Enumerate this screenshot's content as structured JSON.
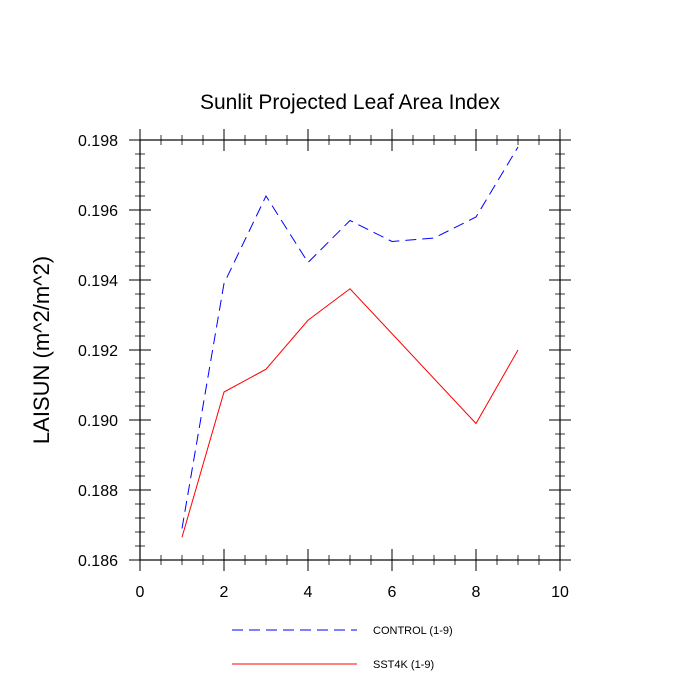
{
  "chart_data": {
    "type": "line",
    "title": "Sunlit Projected Leaf Area Index",
    "xlabel": "",
    "ylabel": "LAISUN  (m^2/m^2)",
    "xlim": [
      0,
      10
    ],
    "ylim": [
      0.186,
      0.198
    ],
    "x_ticks": [
      0,
      2,
      4,
      6,
      8,
      10
    ],
    "y_ticks": [
      0.186,
      0.188,
      0.19,
      0.192,
      0.194,
      0.196,
      0.198
    ],
    "x_tick_labels": [
      "0",
      "2",
      "4",
      "6",
      "8",
      "10"
    ],
    "y_tick_labels": [
      "0.186",
      "0.188",
      "0.190",
      "0.192",
      "0.194",
      "0.196",
      "0.198"
    ],
    "grid": false,
    "legend_position": "bottom",
    "series": [
      {
        "name": "CONTROL (1-9)",
        "color": "#0000ff",
        "line_style": "dashed",
        "x": [
          1,
          2,
          3,
          4,
          5,
          6,
          7,
          8,
          9
        ],
        "values": [
          0.1869,
          0.1939,
          0.1964,
          0.1945,
          0.1957,
          0.1951,
          0.1952,
          0.1958,
          0.1978
        ]
      },
      {
        "name": "SST4K (1-9)",
        "color": "#ff0000",
        "line_style": "solid",
        "x": [
          1,
          2,
          3,
          4,
          5,
          8,
          9
        ],
        "values": [
          0.18665,
          0.1908,
          0.19145,
          0.19285,
          0.19375,
          0.1899,
          0.192
        ]
      }
    ]
  }
}
